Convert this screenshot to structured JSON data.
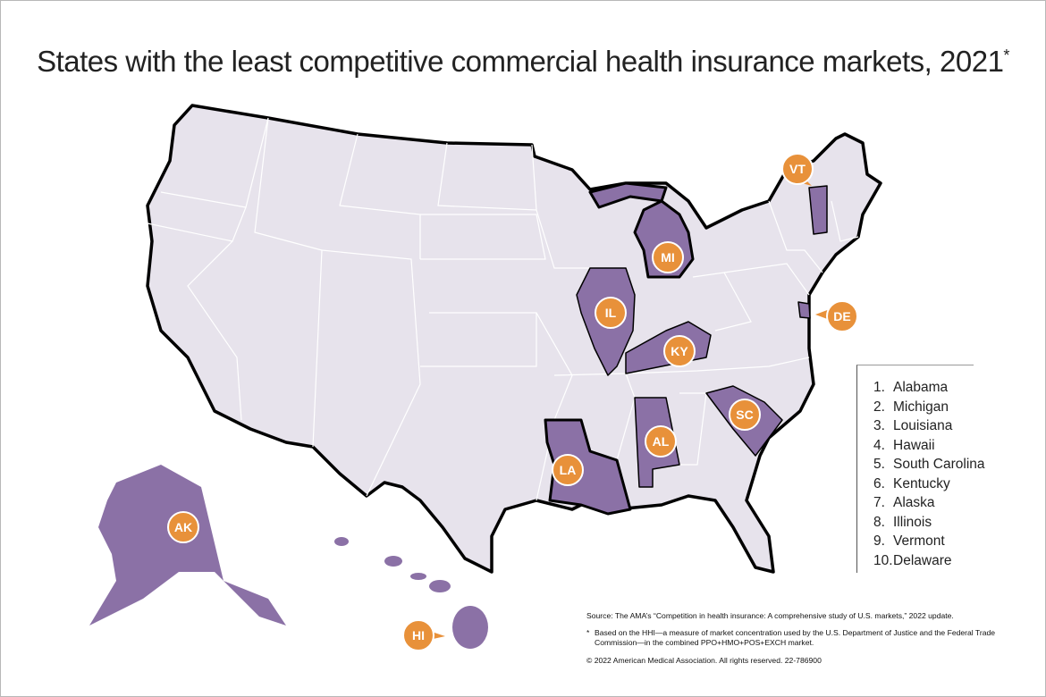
{
  "title": "States with the least competitive commercial health insurance markets, 2021",
  "title_marker": "*",
  "colors": {
    "base": "#e7e3ec",
    "highlight": "#8b71a6",
    "badge": "#e8913a",
    "border": "#000000"
  },
  "badges": {
    "AK": "AK",
    "HI": "HI",
    "LA": "LA",
    "AL": "AL",
    "IL": "IL",
    "KY": "KY",
    "MI": "MI",
    "SC": "SC",
    "VT": "VT",
    "DE": "DE"
  },
  "legend": [
    {
      "n": "1.",
      "state": "Alabama"
    },
    {
      "n": "2.",
      "state": "Michigan"
    },
    {
      "n": "3.",
      "state": "Louisiana"
    },
    {
      "n": "4.",
      "state": "Hawaii"
    },
    {
      "n": "5.",
      "state": "South Carolina"
    },
    {
      "n": "6.",
      "state": "Kentucky"
    },
    {
      "n": "7.",
      "state": "Alaska"
    },
    {
      "n": "8.",
      "state": "Illinois"
    },
    {
      "n": "9.",
      "state": "Vermont"
    },
    {
      "n": "10.",
      "state": "Delaware"
    }
  ],
  "footer": {
    "source": "Source: The AMA’s “Competition in health insurance: A comprehensive study of U.S. markets,” 2022 update.",
    "note_marker": "*",
    "note": "Based on the HHI—a measure of market concentration used by the U.S. Department of Justice and the Federal Trade Commission—in the combined PPO+HMO+POS+EXCH market.",
    "copyright": "© 2022 American Medical Association. All rights reserved. 22-786900"
  }
}
